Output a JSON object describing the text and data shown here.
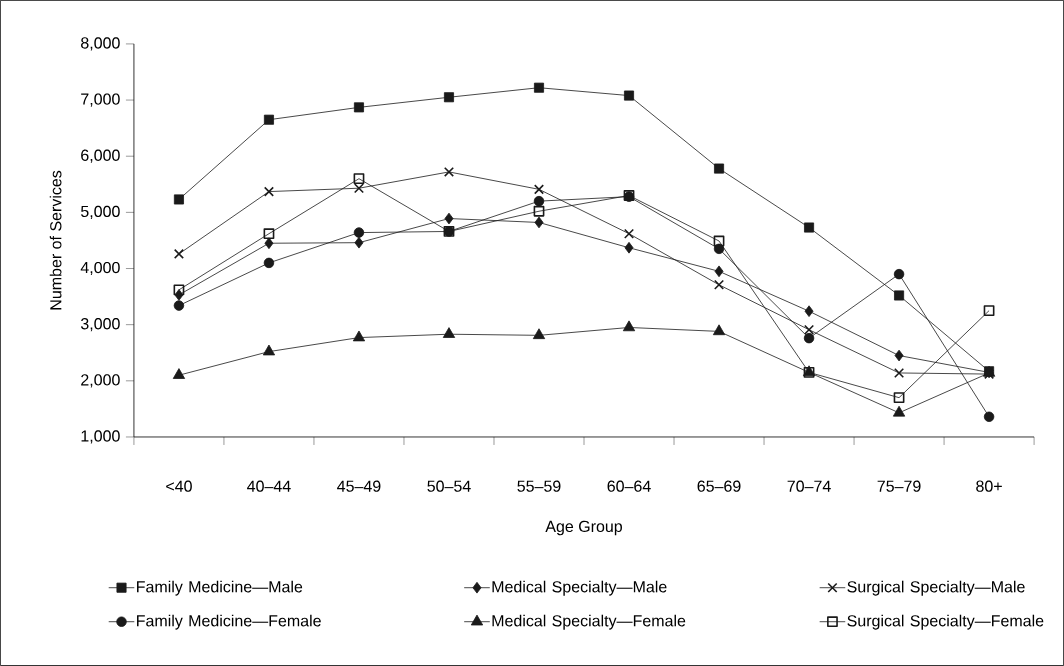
{
  "chart_data": {
    "type": "line",
    "xlabel": "Age Group",
    "ylabel": "Number of Services",
    "categories": [
      "<40",
      "40–44",
      "45–49",
      "50–54",
      "55–59",
      "60–64",
      "65–69",
      "70–74",
      "75–79",
      "80+"
    ],
    "ylim": [
      1000,
      8000
    ],
    "yticks": [
      {
        "value": 1000,
        "label": "1,000"
      },
      {
        "value": 2000,
        "label": "2,000"
      },
      {
        "value": 3000,
        "label": "3,000"
      },
      {
        "value": 4000,
        "label": "4,000"
      },
      {
        "value": 5000,
        "label": "5,000"
      },
      {
        "value": 6000,
        "label": "6,000"
      },
      {
        "value": 7000,
        "label": "7,000"
      },
      {
        "value": 8000,
        "label": "8,000"
      }
    ],
    "grid": false,
    "legend": "bottom",
    "line_style": "solid",
    "series": [
      {
        "name": "Family Medicine—Male",
        "color": "#1a1a1a",
        "marker": "square",
        "values": [
          5230,
          6650,
          6870,
          7050,
          7220,
          7080,
          5780,
          4730,
          3520,
          2170
        ]
      },
      {
        "name": "Medical Specialty—Male",
        "color": "#1a1a1a",
        "marker": "diamond",
        "values": [
          3530,
          4450,
          4460,
          4890,
          4820,
          4370,
          3950,
          3240,
          2450,
          2150
        ]
      },
      {
        "name": "Surgical Specialty—Male",
        "color": "#1a1a1a",
        "marker": "cross",
        "values": [
          4260,
          5370,
          5430,
          5720,
          5410,
          4620,
          3710,
          2910,
          2140,
          2120
        ]
      },
      {
        "name": "Family Medicine—Female",
        "color": "#1a1a1a",
        "marker": "circle",
        "values": [
          3340,
          4100,
          4640,
          4660,
          5200,
          5280,
          4350,
          2760,
          3900,
          1360
        ]
      },
      {
        "name": "Medical Specialty—Female",
        "color": "#1a1a1a",
        "marker": "triangle",
        "values": [
          2100,
          2520,
          2770,
          2830,
          2810,
          2950,
          2880,
          2150,
          1430,
          2140
        ]
      },
      {
        "name": "Surgical Specialty—Female",
        "color": "#1a1a1a",
        "marker": "square",
        "values": [
          3620,
          4620,
          5600,
          4660,
          5020,
          5300,
          4490,
          2150,
          1700,
          3250
        ]
      }
    ]
  }
}
